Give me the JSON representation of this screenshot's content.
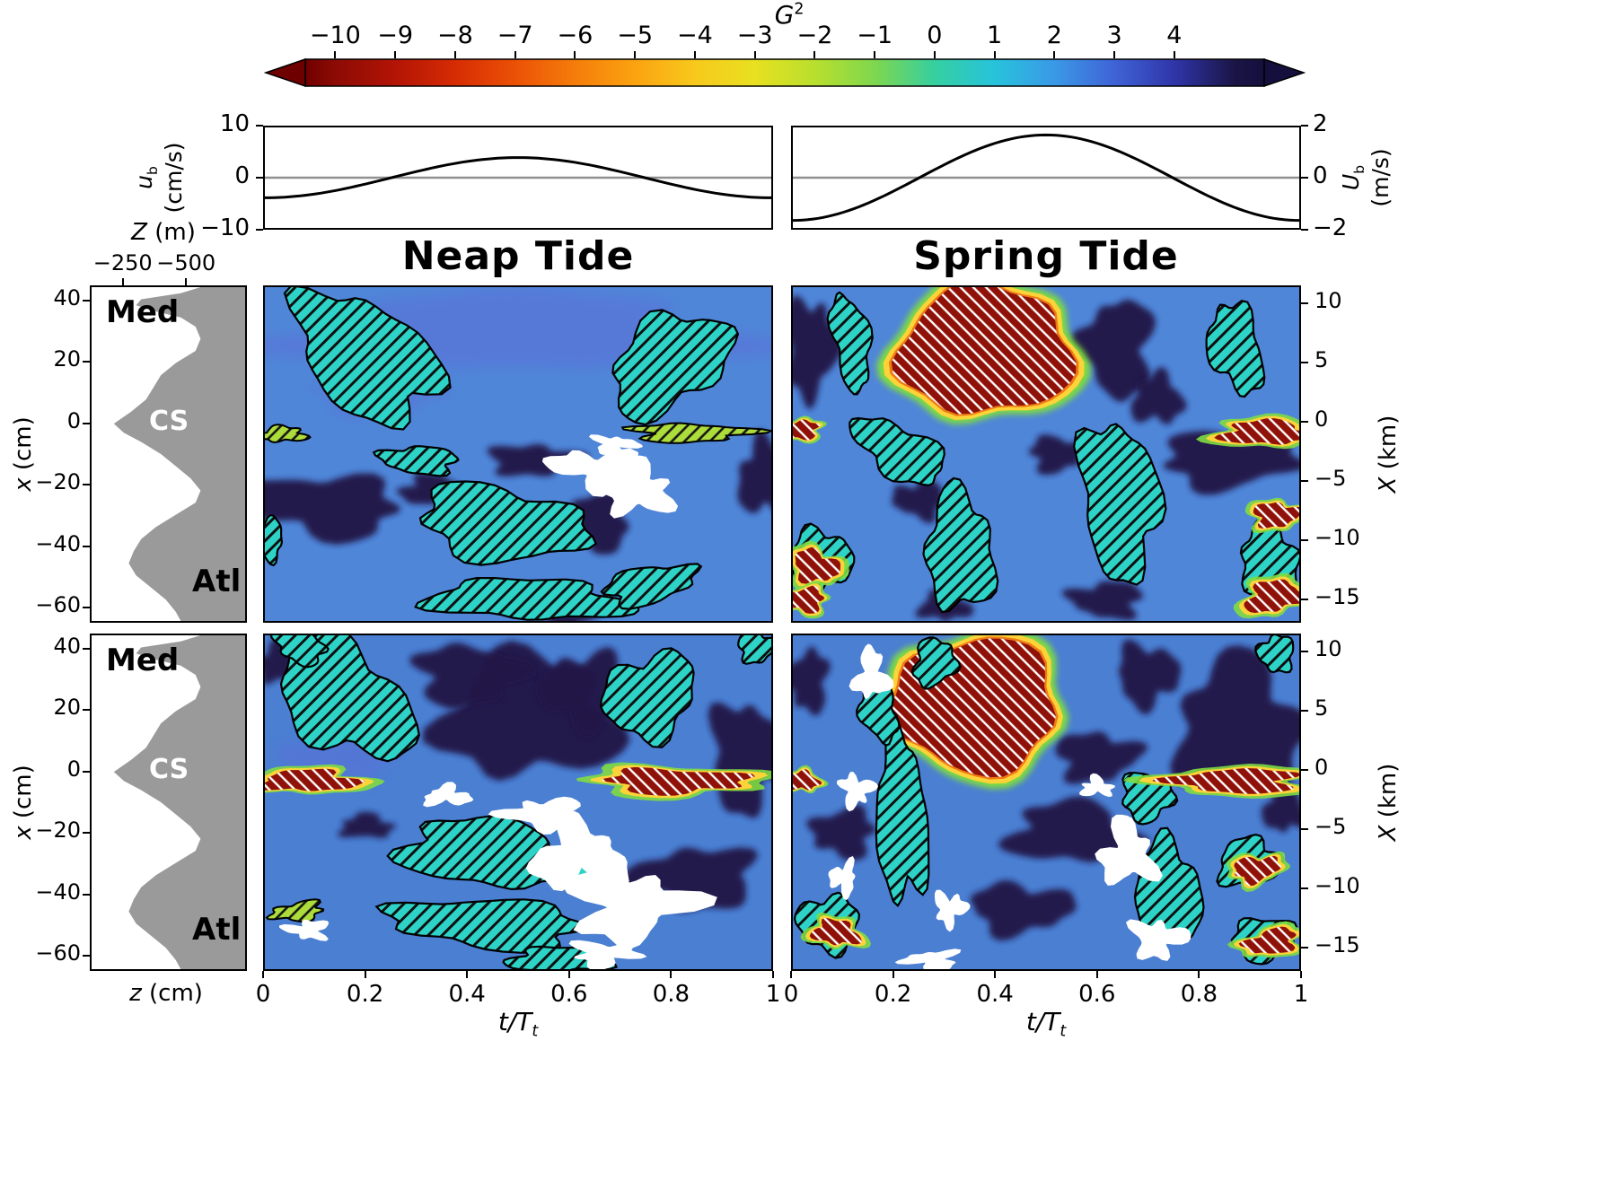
{
  "labels": {
    "g": {
      "base": "G",
      "sup": "2"
    },
    "neap": "Neap Tide",
    "spring": "Spring Tide",
    "ub": {
      "base": "u",
      "sub": "b",
      "units": "(cm/s)"
    },
    "Ub": {
      "base": "U",
      "sub": "b",
      "units": "(m/s)"
    },
    "x_cm": {
      "base": "x",
      "units": "(cm)"
    },
    "X_km": {
      "base": "X",
      "units": "(km)"
    },
    "Z_m": {
      "base": "Z",
      "units": "(m)"
    },
    "z_cm": {
      "base": "z",
      "units": "(cm)"
    },
    "t": {
      "base": "t/T",
      "sub": "t"
    },
    "med": "Med",
    "cs": "CS",
    "atl": "Atl"
  },
  "chart_data": {
    "type": "heatmap",
    "column_titles": [
      "Neap Tide",
      "Spring Tide"
    ],
    "colorbar": {
      "label": "G²",
      "domain": [
        -10.5,
        5.5
      ],
      "tick_values": [
        -10,
        -9,
        -8,
        -7,
        -6,
        -5,
        -4,
        -3,
        -2,
        -1,
        0,
        1,
        2,
        3,
        4
      ],
      "tick_labels": [
        "−10",
        "−9",
        "−8",
        "−7",
        "−6",
        "−5",
        "−4",
        "−3",
        "−2",
        "−1",
        "0",
        "1",
        "2",
        "3",
        "4"
      ],
      "stops": [
        [
          -10.5,
          "#6f0000"
        ],
        [
          -10,
          "#8c0b04"
        ],
        [
          -9,
          "#b31405"
        ],
        [
          -8,
          "#d62c04"
        ],
        [
          -7,
          "#eb5106"
        ],
        [
          -6,
          "#f57d0b"
        ],
        [
          -5,
          "#fba310"
        ],
        [
          -4,
          "#f8c91c"
        ],
        [
          -3,
          "#e8e020"
        ],
        [
          -2,
          "#b9df2e"
        ],
        [
          -1,
          "#7ed74e"
        ],
        [
          0,
          "#36cfa0"
        ],
        [
          1,
          "#27c3dc"
        ],
        [
          2,
          "#3a99e6"
        ],
        [
          3,
          "#3f63d6"
        ],
        [
          4,
          "#2f35a8"
        ],
        [
          5,
          "#1b1547"
        ],
        [
          5.5,
          "#140f3c"
        ]
      ]
    },
    "time_axis": {
      "tick_values": [
        0,
        0.2,
        0.4,
        0.6,
        0.8,
        1
      ],
      "tick_labels": [
        "0",
        "0.2",
        "0.4",
        "0.6",
        "0.8",
        "1"
      ],
      "range": [
        0,
        1
      ]
    },
    "x_cm_axis": {
      "tick_values": [
        40,
        20,
        0,
        -20,
        -40,
        -60
      ],
      "tick_labels": [
        "40",
        "20",
        "0",
        "−20",
        "−40",
        "−60"
      ],
      "range": [
        45,
        -65
      ]
    },
    "X_km_axis": {
      "tick_values": [
        10,
        5,
        0,
        -5,
        -10,
        -15
      ],
      "tick_labels": [
        "10",
        "5",
        "0",
        "−5",
        "−10",
        "−15"
      ],
      "range": [
        11.5,
        -17
      ]
    },
    "velocity": {
      "neap": {
        "ylim": [
          -10,
          10
        ],
        "tick_values": [
          10,
          0,
          -10
        ],
        "tick_labels": [
          "10",
          "0",
          "−10"
        ],
        "amplitude": 4,
        "waveform": "minimum at t=0, maximum near t=0.5"
      },
      "spring": {
        "ylim": [
          -2,
          2
        ],
        "tick_values": [
          2,
          0,
          -2
        ],
        "tick_labels": [
          "2",
          "0",
          "−2"
        ],
        "amplitude": 1.7,
        "waveform": "minimum at t=0, maximum near t=0.5"
      }
    },
    "bathymetry": {
      "z_axis": {
        "tick_values": [
          -250,
          -500
        ],
        "tick_labels": [
          "−250",
          "−500"
        ],
        "range": [
          -120,
          -740
        ]
      },
      "region_labels": [
        "Med",
        "CS",
        "Atl"
      ],
      "profile_x_cm_vs_Z_m": [
        [
          45,
          -560
        ],
        [
          43,
          -480
        ],
        [
          41,
          -320
        ],
        [
          39,
          -300
        ],
        [
          37,
          -380
        ],
        [
          35,
          -480
        ],
        [
          32,
          -540
        ],
        [
          28,
          -560
        ],
        [
          24,
          -540
        ],
        [
          20,
          -460
        ],
        [
          16,
          -400
        ],
        [
          12,
          -370
        ],
        [
          8,
          -340
        ],
        [
          4,
          -280
        ],
        [
          0,
          -210
        ],
        [
          -3,
          -250
        ],
        [
          -6,
          -320
        ],
        [
          -10,
          -400
        ],
        [
          -14,
          -460
        ],
        [
          -18,
          -520
        ],
        [
          -22,
          -560
        ],
        [
          -26,
          -540
        ],
        [
          -30,
          -460
        ],
        [
          -34,
          -380
        ],
        [
          -38,
          -320
        ],
        [
          -42,
          -290
        ],
        [
          -46,
          -270
        ],
        [
          -50,
          -300
        ],
        [
          -54,
          -360
        ],
        [
          -58,
          -420
        ],
        [
          -62,
          -460
        ],
        [
          -65,
          -480
        ]
      ]
    },
    "palette": {
      "background_blue": "#4f86d8",
      "background_blue2": "#4a7fd2",
      "blue2": "#5b6fd8",
      "dark": "#201646",
      "cyan_hatch": "#2ed3c7",
      "green_hatch": "#addd3a",
      "red_hatch": "#8f1108",
      "halo_green": "#7fdc41",
      "halo_yellow": "#fed33a",
      "halo_orange": "#ef7b15",
      "white": "#ffffff",
      "bathy_gray": "#9a9a9a",
      "zero_line": "#909090",
      "curve": "#000000"
    },
    "panels": [
      {
        "id": "neap-top",
        "column": "Neap Tide",
        "row": 1,
        "background": "#4f86d8",
        "features": [
          [
            "blue2",
            0.5,
            30,
            0.42,
            13,
            0
          ],
          [
            "blue2",
            0.22,
            10,
            0.12,
            6,
            0
          ],
          [
            "dark",
            0.12,
            -27,
            0.145,
            10,
            5
          ],
          [
            "dark",
            0.33,
            -22,
            0.06,
            5,
            0
          ],
          [
            "dark",
            0.53,
            -12,
            0.09,
            5,
            0
          ],
          [
            "dark",
            0.66,
            -32,
            0.06,
            10,
            -5
          ],
          [
            "dark",
            0.985,
            -18,
            0.05,
            12,
            0
          ],
          [
            "dark",
            0.6,
            -63,
            0.05,
            4,
            0
          ],
          [
            "cyan",
            0.2,
            22,
            0.16,
            17,
            38
          ],
          [
            "cyan",
            0.8,
            20,
            0.13,
            14,
            -35
          ],
          [
            "cyan",
            0.47,
            -33,
            0.165,
            12,
            8
          ],
          [
            "cyan",
            0.305,
            -12,
            0.075,
            4.5,
            3
          ],
          [
            "cyan",
            0.52,
            -58,
            0.2,
            6.5,
            2
          ],
          [
            "cyan",
            0.76,
            -53,
            0.09,
            6,
            -12
          ],
          [
            "cyan",
            0.005,
            -38,
            0.03,
            7,
            0
          ],
          [
            "green",
            0.035,
            -3.5,
            0.045,
            2.5,
            0
          ],
          [
            "green",
            0.84,
            -3,
            0.115,
            3,
            0
          ],
          [
            "white",
            0.655,
            -15,
            0.085,
            6,
            8
          ],
          [
            "white",
            0.74,
            -22,
            0.06,
            8,
            0
          ],
          [
            "white",
            0.69,
            -7,
            0.04,
            3,
            0
          ]
        ]
      },
      {
        "id": "spring-top",
        "column": "Spring Tide",
        "row": 1,
        "background": "#4f86d8",
        "features": [
          [
            "dark",
            0.035,
            25,
            0.05,
            16,
            0
          ],
          [
            "dark",
            0.64,
            25,
            0.07,
            16,
            0
          ],
          [
            "dark",
            0.72,
            8,
            0.05,
            8,
            0
          ],
          [
            "dark",
            0.86,
            -12,
            0.13,
            9,
            0
          ],
          [
            "dark",
            0.62,
            -58,
            0.07,
            6,
            0
          ],
          [
            "dark",
            0.3,
            -60,
            0.05,
            5,
            0
          ],
          [
            "dark",
            0.52,
            -10,
            0.05,
            6,
            0
          ],
          [
            "dark",
            0.25,
            -25,
            0.05,
            6,
            0
          ],
          [
            "redcore",
            0.38,
            24,
            0.17,
            21,
            0
          ],
          [
            "cyan",
            0.115,
            27,
            0.035,
            16,
            -10
          ],
          [
            "cyan",
            0.21,
            -9,
            0.1,
            8,
            30
          ],
          [
            "cyan",
            0.33,
            -42,
            0.065,
            20,
            -5
          ],
          [
            "cyan",
            0.645,
            -25,
            0.075,
            26,
            -7
          ],
          [
            "cyan",
            0.875,
            25,
            0.05,
            15,
            -15
          ],
          [
            "cyan",
            0.94,
            -45,
            0.055,
            12,
            -8
          ],
          [
            "cyan",
            0.055,
            -45,
            0.06,
            10,
            12
          ],
          [
            "red",
            0.015,
            -2,
            0.035,
            3,
            0
          ],
          [
            "red",
            0.935,
            -3,
            0.085,
            4,
            0
          ],
          [
            "red",
            0.045,
            -47,
            0.045,
            5,
            15
          ],
          [
            "red",
            0.025,
            -58,
            0.035,
            4,
            0
          ],
          [
            "red",
            0.95,
            -57,
            0.055,
            5,
            -12
          ],
          [
            "red",
            0.955,
            -30,
            0.045,
            4,
            0
          ]
        ]
      },
      {
        "id": "neap-bottom",
        "column": "Neap Tide",
        "row": 2,
        "background": "#4a7fd2",
        "features": [
          [
            "blue2",
            0.15,
            5,
            0.12,
            6,
            0
          ],
          [
            "dark",
            0.52,
            18,
            0.17,
            20,
            0
          ],
          [
            "dark",
            0.4,
            32,
            0.1,
            10,
            0
          ],
          [
            "dark",
            0.63,
            27,
            0.08,
            12,
            0
          ],
          [
            "dark",
            0.03,
            36,
            0.04,
            7,
            0
          ],
          [
            "dark",
            0.95,
            5,
            0.07,
            18,
            0
          ],
          [
            "dark",
            0.85,
            -35,
            0.12,
            10,
            0
          ],
          [
            "dark",
            0.2,
            -18,
            0.05,
            4,
            0
          ],
          [
            "cyan",
            0.16,
            24,
            0.15,
            16,
            38
          ],
          [
            "cyan",
            0.07,
            41,
            0.05,
            5,
            20
          ],
          [
            "cyan",
            0.44,
            -27,
            0.17,
            11,
            6
          ],
          [
            "cyan",
            0.76,
            25,
            0.095,
            13,
            -35
          ],
          [
            "cyan",
            0.44,
            -50,
            0.19,
            8,
            4
          ],
          [
            "cyan",
            0.58,
            -62,
            0.1,
            4,
            0
          ],
          [
            "cyan",
            0.97,
            41,
            0.035,
            5,
            0
          ],
          [
            "green",
            0.065,
            -46,
            0.05,
            3,
            -8
          ],
          [
            "white",
            0.62,
            -28,
            0.09,
            10,
            0
          ],
          [
            "white",
            0.72,
            -44,
            0.11,
            11,
            0
          ],
          [
            "white",
            0.55,
            -14,
            0.07,
            5,
            0
          ],
          [
            "white",
            0.36,
            -8,
            0.045,
            3,
            0
          ],
          [
            "white",
            0.67,
            -60,
            0.06,
            4,
            0
          ],
          [
            "white",
            0.085,
            -52,
            0.04,
            3,
            0
          ],
          [
            "red",
            0.085,
            -3,
            0.095,
            3.5,
            0
          ],
          [
            "red",
            0.81,
            -3,
            0.135,
            4,
            0
          ]
        ]
      },
      {
        "id": "spring-bottom",
        "column": "Spring Tide",
        "row": 2,
        "background": "#4a7fd2",
        "features": [
          [
            "dark",
            0.88,
            15,
            0.12,
            22,
            0
          ],
          [
            "dark",
            0.7,
            32,
            0.06,
            10,
            0
          ],
          [
            "dark",
            0.03,
            30,
            0.04,
            10,
            0
          ],
          [
            "dark",
            0.55,
            -20,
            0.12,
            10,
            0
          ],
          [
            "dark",
            0.45,
            -45,
            0.1,
            8,
            0
          ],
          [
            "dark",
            0.1,
            -20,
            0.06,
            8,
            0
          ],
          [
            "dark",
            0.97,
            -12,
            0.04,
            8,
            0
          ],
          [
            "dark",
            0.6,
            5,
            0.08,
            8,
            0
          ],
          [
            "redcore",
            0.36,
            22,
            0.16,
            22,
            0
          ],
          [
            "cyan",
            0.215,
            -15,
            0.05,
            28,
            -3
          ],
          [
            "cyan",
            0.28,
            36,
            0.04,
            8,
            20
          ],
          [
            "cyan",
            0.17,
            20,
            0.035,
            10,
            -12
          ],
          [
            "cyan",
            0.74,
            -40,
            0.065,
            17,
            -6
          ],
          [
            "cyan",
            0.7,
            -8,
            0.05,
            8,
            0
          ],
          [
            "cyan",
            0.955,
            39,
            0.035,
            6,
            0
          ],
          [
            "cyan",
            0.9,
            -30,
            0.06,
            8,
            -8
          ],
          [
            "cyan",
            0.93,
            -55,
            0.06,
            7,
            -8
          ],
          [
            "cyan",
            0.07,
            -50,
            0.06,
            9,
            8
          ],
          [
            "white",
            0.155,
            32,
            0.03,
            8,
            0
          ],
          [
            "white",
            0.125,
            -6,
            0.03,
            5,
            0
          ],
          [
            "white",
            0.1,
            -35,
            0.025,
            5,
            0
          ],
          [
            "white",
            0.66,
            -27,
            0.05,
            10,
            0
          ],
          [
            "white",
            0.72,
            -55,
            0.05,
            6,
            0
          ],
          [
            "white",
            0.275,
            -62,
            0.05,
            3,
            0
          ],
          [
            "white",
            0.6,
            -5,
            0.03,
            3,
            0
          ],
          [
            "white",
            0.31,
            -45,
            0.03,
            5,
            0
          ],
          [
            "red",
            0.875,
            -3,
            0.12,
            4,
            0
          ],
          [
            "red",
            0.02,
            -3,
            0.03,
            3,
            0
          ],
          [
            "red",
            0.915,
            -32,
            0.045,
            4,
            -8
          ],
          [
            "red",
            0.945,
            -56,
            0.05,
            4,
            -12
          ],
          [
            "red",
            0.085,
            -53,
            0.045,
            4,
            8
          ]
        ]
      }
    ]
  }
}
